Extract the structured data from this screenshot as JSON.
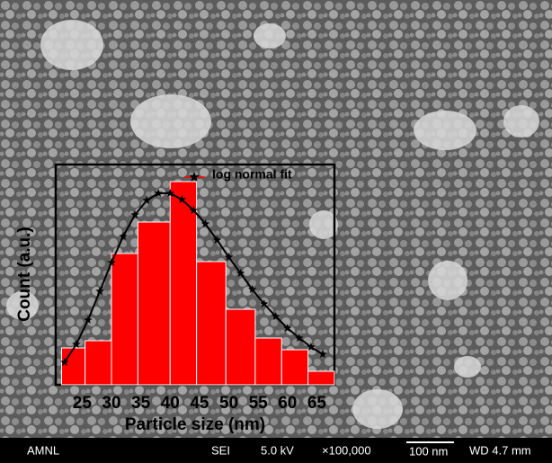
{
  "chart_data": {
    "type": "histogram",
    "x_label": "Particle size (nm)",
    "y_label": "Count (a.u.)",
    "bins": [
      21.5,
      25.5,
      30,
      34.5,
      40,
      44.5,
      49.5,
      54.5,
      59,
      63.5,
      68
    ],
    "values": [
      41,
      49,
      146,
      181,
      226,
      137,
      84,
      52,
      39,
      15
    ],
    "color": "#ff0000",
    "xlim": [
      20.5,
      68
    ],
    "xticks": [
      25,
      30,
      35,
      40,
      45,
      50,
      55,
      60,
      65
    ],
    "ylim": [
      0,
      245
    ],
    "fit": {
      "name": "log normal fit",
      "color": "#000000",
      "x": [
        22,
        24,
        26,
        28,
        30,
        32,
        34,
        36,
        38,
        40,
        42,
        44,
        46,
        48,
        50,
        52,
        54,
        56,
        58,
        60,
        62,
        64,
        66
      ],
      "values": [
        25,
        45,
        72,
        104,
        136,
        165,
        189,
        205,
        213,
        213,
        206,
        194,
        179,
        161,
        142,
        124,
        106,
        90,
        76,
        63,
        52,
        42,
        34
      ]
    }
  },
  "info_bar": {
    "lab": "AMNL",
    "detector": "SEI",
    "voltage": "5.0 kV",
    "magnification": "×100,000",
    "scale": "100 nm",
    "working_distance": "WD 4.7 mm"
  }
}
